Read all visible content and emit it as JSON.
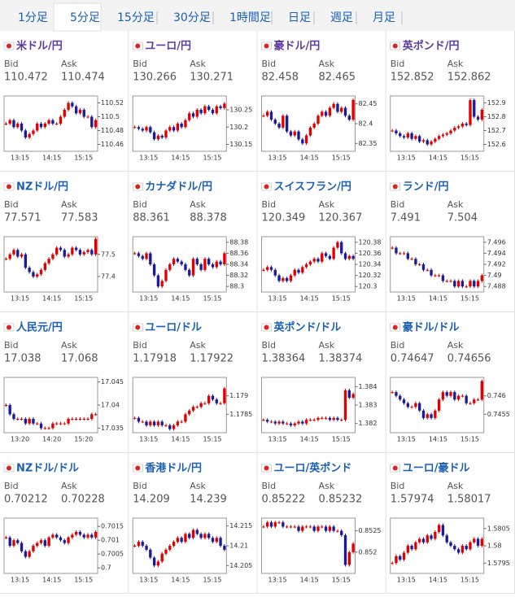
{
  "tabs": {
    "items": [
      "1分足",
      "5分足",
      "15分足",
      "30分足",
      "1時間足",
      "日足",
      "週足",
      "月足"
    ],
    "active": 1
  },
  "labels": {
    "bid": "Bid",
    "ask": "Ask"
  },
  "colors": {
    "link": "#1a5fb4",
    "visited": "#5b3a9e",
    "up": "#e00000",
    "down": "#1a1a9a"
  },
  "pairs": [
    {
      "name": "米ドル/円",
      "visited": true,
      "bid": "110.472",
      "ask": "110.474",
      "chart": {
        "type": "candle",
        "ylim": [
          110.45,
          110.53
        ],
        "yticks": [
          110.52,
          110.5,
          110.48,
          110.46
        ],
        "xticks": [
          "13:15",
          "14:15",
          "15:15"
        ],
        "values": [
          110.49,
          110.495,
          110.485,
          110.49,
          110.48,
          110.47,
          110.475,
          110.48,
          110.49,
          110.485,
          110.49,
          110.495,
          110.49,
          110.49,
          110.5,
          110.51,
          110.52,
          110.515,
          110.505,
          110.51,
          110.5,
          110.5,
          110.485,
          110.495
        ]
      }
    },
    {
      "name": "ユーロ/円",
      "visited": true,
      "bid": "130.266",
      "ask": "130.271",
      "chart": {
        "type": "candle",
        "ylim": [
          130.13,
          130.29
        ],
        "yticks": [
          130.25,
          130.2,
          130.15
        ],
        "xticks": [
          "13:15",
          "14:15",
          "15:15"
        ],
        "values": [
          130.2,
          130.195,
          130.19,
          130.2,
          130.185,
          130.165,
          130.175,
          130.17,
          130.19,
          130.2,
          130.19,
          130.21,
          130.2,
          130.22,
          130.24,
          130.23,
          130.25,
          130.24,
          130.26,
          130.25,
          130.24,
          130.26,
          130.255,
          130.268
        ]
      }
    },
    {
      "name": "豪ドル/円",
      "visited": true,
      "bid": "82.458",
      "ask": "82.465",
      "chart": {
        "type": "candle",
        "ylim": [
          82.33,
          82.47
        ],
        "yticks": [
          82.45,
          82.4,
          82.35
        ],
        "xticks": [
          "13:15",
          "14:15",
          "15:15"
        ],
        "values": [
          82.42,
          82.43,
          82.41,
          82.4,
          82.39,
          82.42,
          82.38,
          82.37,
          82.38,
          82.36,
          82.35,
          82.37,
          82.39,
          82.4,
          82.42,
          82.43,
          82.42,
          82.44,
          82.45,
          82.43,
          82.44,
          82.42,
          82.41,
          82.46
        ]
      }
    },
    {
      "name": "英ポンド/円",
      "visited": true,
      "bid": "152.852",
      "ask": "152.862",
      "chart": {
        "type": "candle",
        "ylim": [
          152.55,
          152.95
        ],
        "yticks": [
          152.9,
          152.8,
          152.7,
          152.6
        ],
        "xticks": [
          "13:15",
          "14:15",
          "15:15"
        ],
        "values": [
          152.7,
          152.68,
          152.66,
          152.65,
          152.68,
          152.64,
          152.66,
          152.62,
          152.63,
          152.6,
          152.62,
          152.64,
          152.66,
          152.67,
          152.68,
          152.7,
          152.72,
          152.73,
          152.75,
          152.74,
          152.92,
          152.8,
          152.78,
          152.85
        ]
      }
    },
    {
      "name": "NZドル/円",
      "visited": false,
      "bid": "77.571",
      "ask": "77.583",
      "chart": {
        "type": "candle",
        "ylim": [
          77.33,
          77.58
        ],
        "yticks": [
          77.5,
          77.4
        ],
        "xticks": [
          "13:15",
          "14:15",
          "15:15"
        ],
        "values": [
          77.48,
          77.5,
          77.52,
          77.49,
          77.5,
          77.44,
          77.42,
          77.4,
          77.41,
          77.43,
          77.46,
          77.48,
          77.5,
          77.53,
          77.52,
          77.49,
          77.5,
          77.53,
          77.52,
          77.5,
          77.51,
          77.52,
          77.5,
          77.57
        ]
      }
    },
    {
      "name": "カナダドル/円",
      "visited": false,
      "bid": "88.361",
      "ask": "88.378",
      "chart": {
        "type": "candle",
        "ylim": [
          88.29,
          88.39
        ],
        "yticks": [
          88.38,
          88.36,
          88.34,
          88.32,
          88.3
        ],
        "xticks": [
          "13:15",
          "14:15",
          "15:15"
        ],
        "values": [
          88.36,
          88.355,
          88.35,
          88.36,
          88.34,
          88.32,
          88.3,
          88.31,
          88.33,
          88.34,
          88.35,
          88.345,
          88.34,
          88.33,
          88.32,
          88.35,
          88.34,
          88.33,
          88.35,
          88.34,
          88.335,
          88.345,
          88.34,
          88.36
        ]
      }
    },
    {
      "name": "スイスフラン/円",
      "visited": false,
      "bid": "120.349",
      "ask": "120.367",
      "chart": {
        "type": "candle",
        "ylim": [
          120.29,
          120.39
        ],
        "yticks": [
          120.38,
          120.36,
          120.34,
          120.32,
          120.3
        ],
        "xticks": [
          "13:15",
          "14:15",
          "15:15"
        ],
        "values": [
          120.33,
          120.335,
          120.33,
          120.32,
          120.31,
          120.315,
          120.31,
          120.32,
          120.33,
          120.325,
          120.335,
          120.34,
          120.345,
          120.35,
          120.345,
          120.36,
          120.355,
          120.35,
          120.37,
          120.38,
          120.36,
          120.35,
          120.355,
          120.35
        ]
      }
    },
    {
      "name": "ランド/円",
      "visited": false,
      "bid": "7.491",
      "ask": "7.504",
      "chart": {
        "type": "candle",
        "ylim": [
          7.487,
          7.497
        ],
        "yticks": [
          7.496,
          7.494,
          7.492,
          7.49,
          7.488
        ],
        "xticks": [
          "13:15",
          "14:15",
          "15:15"
        ],
        "values": [
          7.495,
          7.494,
          7.494,
          7.494,
          7.493,
          7.493,
          7.492,
          7.492,
          7.491,
          7.491,
          7.49,
          7.49,
          7.49,
          7.489,
          7.489,
          7.489,
          7.488,
          7.489,
          7.488,
          7.488,
          7.489,
          7.488,
          7.489,
          7.49
        ]
      }
    },
    {
      "name": "人民元/円",
      "visited": false,
      "bid": "17.038",
      "ask": "17.068",
      "chart": {
        "type": "candle",
        "ylim": [
          17.034,
          17.046
        ],
        "yticks": [
          17.045,
          17.04,
          17.035
        ],
        "xticks": [
          "13:20",
          "14:20",
          "15:20"
        ],
        "values": [
          17.04,
          17.038,
          17.037,
          17.037,
          17.037,
          17.036,
          17.037,
          17.036,
          17.036,
          17.035,
          17.035,
          17.035,
          17.036,
          17.036,
          17.036,
          17.036,
          17.037,
          17.037,
          17.037,
          17.037,
          17.037,
          17.037,
          17.038,
          17.038
        ]
      }
    },
    {
      "name": "ユーロ/ドル",
      "visited": false,
      "bid": "1.17918",
      "ask": "1.17922",
      "chart": {
        "type": "candle",
        "ylim": [
          1.178,
          1.1795
        ],
        "yticks": [
          1.179,
          1.1785
        ],
        "xticks": [
          "13:15",
          "14:15",
          "15:15"
        ],
        "values": [
          1.1784,
          1.1783,
          1.1783,
          1.1782,
          1.1783,
          1.1782,
          1.1783,
          1.1782,
          1.1782,
          1.1781,
          1.1782,
          1.1783,
          1.1783,
          1.1785,
          1.1786,
          1.1787,
          1.1787,
          1.1788,
          1.1788,
          1.179,
          1.1789,
          1.1788,
          1.1788,
          1.1792
        ]
      }
    },
    {
      "name": "英ポンド/ドル",
      "visited": false,
      "bid": "1.38364",
      "ask": "1.38374",
      "chart": {
        "type": "candle",
        "ylim": [
          1.3815,
          1.3845
        ],
        "yticks": [
          1.384,
          1.383,
          1.382
        ],
        "xticks": [
          "13:15",
          "14:15",
          "15:15"
        ],
        "values": [
          1.3822,
          1.3821,
          1.3821,
          1.382,
          1.3821,
          1.382,
          1.382,
          1.3819,
          1.382,
          1.3821,
          1.382,
          1.3822,
          1.3822,
          1.3822,
          1.3823,
          1.3823,
          1.3823,
          1.3822,
          1.3823,
          1.3822,
          1.3822,
          1.3838,
          1.3834,
          1.3836
        ]
      }
    },
    {
      "name": "豪ドル/ドル",
      "visited": false,
      "bid": "0.74647",
      "ask": "0.74656",
      "chart": {
        "type": "candle",
        "ylim": [
          0.745,
          0.7465
        ],
        "yticks": [
          0.746,
          0.7455
        ],
        "xticks": [
          "13:15",
          "14:15",
          "15:15"
        ],
        "values": [
          0.7461,
          0.746,
          0.7459,
          0.7458,
          0.7457,
          0.7457,
          0.7458,
          0.7456,
          0.7454,
          0.7455,
          0.7454,
          0.7456,
          0.7459,
          0.7461,
          0.746,
          0.7461,
          0.7459,
          0.746,
          0.746,
          0.7458,
          0.7458,
          0.7459,
          0.7459,
          0.7464
        ]
      }
    },
    {
      "name": "NZドル/ドル",
      "visited": false,
      "bid": "0.70212",
      "ask": "0.70228",
      "chart": {
        "type": "candle",
        "ylim": [
          0.6998,
          0.7018
        ],
        "yticks": [
          0.7015,
          0.701,
          0.7005,
          0.7
        ],
        "xticks": [
          "13:15",
          "14:15",
          "15:15"
        ],
        "values": [
          0.7011,
          0.7008,
          0.701,
          0.7009,
          0.7006,
          0.7004,
          0.7006,
          0.7008,
          0.7009,
          0.701,
          0.7008,
          0.7011,
          0.7012,
          0.7011,
          0.701,
          0.7009,
          0.7011,
          0.7012,
          0.7013,
          0.7012,
          0.7011,
          0.7012,
          0.7011,
          0.7013
        ]
      }
    },
    {
      "name": "香港ドル/円",
      "visited": false,
      "bid": "14.209",
      "ask": "14.239",
      "chart": {
        "type": "candle",
        "ylim": [
          14.203,
          14.217
        ],
        "yticks": [
          14.215,
          14.21,
          14.205
        ],
        "xticks": [
          "13:15",
          "14:15",
          "15:15"
        ],
        "values": [
          14.21,
          14.211,
          14.21,
          14.209,
          14.207,
          14.205,
          14.206,
          14.208,
          14.209,
          14.21,
          14.211,
          14.212,
          14.211,
          14.213,
          14.212,
          14.214,
          14.213,
          14.212,
          14.213,
          14.212,
          14.211,
          14.212,
          14.21,
          14.209
        ]
      }
    },
    {
      "name": "ユーロ/英ポンド",
      "visited": false,
      "bid": "0.85222",
      "ask": "0.85232",
      "chart": {
        "type": "candle",
        "ylim": [
          0.8515,
          0.8528
        ],
        "yticks": [
          0.8525,
          0.852
        ],
        "xticks": [
          "13:15",
          "14:15",
          "15:15"
        ],
        "values": [
          0.8526,
          0.8527,
          0.8526,
          0.8527,
          0.8527,
          0.8526,
          0.8526,
          0.8526,
          0.8526,
          0.8525,
          0.8526,
          0.8526,
          0.8526,
          0.8525,
          0.8526,
          0.8526,
          0.8525,
          0.8526,
          0.8525,
          0.8525,
          0.8524,
          0.8517,
          0.852,
          0.8522
        ]
      }
    },
    {
      "name": "ユーロ/豪ドル",
      "visited": false,
      "bid": "1.57974",
      "ask": "1.58017",
      "chart": {
        "type": "candle",
        "ylim": [
          1.5792,
          1.5808
        ],
        "yticks": [
          1.5805,
          1.58,
          1.5795
        ],
        "xticks": [
          "13:15",
          "14:15",
          "15:15"
        ],
        "values": [
          1.5795,
          1.5797,
          1.5796,
          1.5798,
          1.58,
          1.5799,
          1.5801,
          1.5802,
          1.5801,
          1.5803,
          1.5802,
          1.5804,
          1.5806,
          1.5803,
          1.5801,
          1.58,
          1.5799,
          1.5798,
          1.58,
          1.5799,
          1.5801,
          1.5802,
          1.58,
          1.5802
        ]
      }
    }
  ]
}
